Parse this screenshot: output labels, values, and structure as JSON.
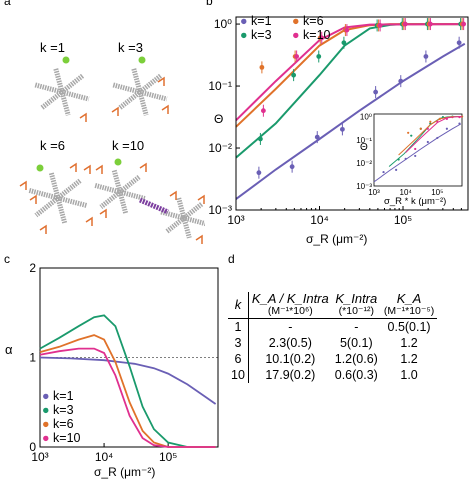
{
  "panels": {
    "a": "a",
    "b": "b",
    "c": "c",
    "d": "d"
  },
  "molecule_labels": [
    "k =1",
    "k =3",
    "k =6",
    "k =10"
  ],
  "colors": {
    "k1": "#6a5fb5",
    "k3": "#1a9a6c",
    "k6": "#e0722a",
    "k10": "#e0308f",
    "strand": "#a8a8a8",
    "tip": "#e07030",
    "ligand": "#7ccf3a"
  },
  "chart_data": [
    {
      "panel": "b",
      "type": "line",
      "title": "",
      "xlabel": "σ_R (μm⁻²)",
      "ylabel": "Θ",
      "x_scale": "log",
      "y_scale": "log",
      "xlim": [
        1000,
        600000
      ],
      "ylim": [
        0.001,
        1.3
      ],
      "x_ticks": [
        "10³",
        "10⁴",
        "10⁵"
      ],
      "y_ticks": [
        "10⁰",
        "10⁻¹",
        "10⁻²",
        "10⁻³"
      ],
      "legend": [
        "k=1",
        "k=3",
        "k=6",
        "k=10"
      ],
      "legend_position": "top-left",
      "series": [
        {
          "name": "k=1",
          "color": "#6a5fb5",
          "line": {
            "x": [
              1000,
              3000,
              10000,
              30000,
              100000,
              300000,
              550000
            ],
            "y": [
              0.0015,
              0.0045,
              0.014,
              0.04,
              0.12,
              0.3,
              0.48
            ]
          },
          "points": {
            "x": [
              2000,
              5000,
              10000,
              20000,
              50000,
              100000,
              200000,
              500000
            ],
            "y": [
              0.004,
              0.005,
              0.015,
              0.02,
              0.08,
              0.12,
              0.3,
              0.5
            ]
          }
        },
        {
          "name": "k=3",
          "color": "#1a9a6c",
          "line": {
            "x": [
              1000,
              3000,
              10000,
              20000,
              40000,
              70000,
              100000,
              550000
            ],
            "y": [
              0.007,
              0.025,
              0.15,
              0.45,
              0.85,
              0.97,
              1.0,
              1.0
            ]
          },
          "points": {
            "x": [
              2000,
              5000,
              10000,
              20000,
              50000,
              100000,
              200000,
              500000
            ],
            "y": [
              0.014,
              0.15,
              0.3,
              0.5,
              0.95,
              1.0,
              1.0,
              1.0
            ]
          }
        },
        {
          "name": "k=6",
          "color": "#e0722a",
          "line": {
            "x": [
              1000,
              3000,
              10000,
              20000,
              40000,
              70000,
              550000
            ],
            "y": [
              0.022,
              0.09,
              0.45,
              0.8,
              0.96,
              1.0,
              1.0
            ]
          },
          "points": {
            "x": [
              2000,
              5000,
              10000,
              20000,
              50000,
              100000,
              200000,
              500000
            ],
            "y": [
              0.2,
              0.3,
              0.6,
              0.8,
              0.95,
              1.0,
              1.0,
              1.0
            ]
          }
        },
        {
          "name": "k=10",
          "color": "#e0308f",
          "line": {
            "x": [
              1000,
              3000,
              10000,
              20000,
              40000,
              550000
            ],
            "y": [
              0.028,
              0.12,
              0.55,
              0.88,
              0.98,
              1.0
            ]
          },
          "points": {
            "x": [
              2000,
              5000,
              10000,
              20000,
              50000,
              100000,
              200000,
              500000
            ],
            "y": [
              0.04,
              0.3,
              0.6,
              0.8,
              0.95,
              1.0,
              1.0,
              1.0
            ]
          }
        }
      ]
    },
    {
      "panel": "b-inset",
      "type": "line",
      "xlabel": "σ_R * k (μm⁻²)",
      "ylabel": "Θ",
      "x_scale": "log",
      "y_scale": "log",
      "xlim": [
        1000,
        600000
      ],
      "ylim": [
        0.001,
        1.3
      ],
      "x_ticks": [
        "10³",
        "10⁴",
        "10⁵"
      ],
      "y_ticks": [
        "10⁰",
        "10⁻¹",
        "10⁻²",
        "10⁻³"
      ]
    },
    {
      "panel": "c",
      "type": "line",
      "xlabel": "σ_R (μm⁻²)",
      "ylabel": "α",
      "x_scale": "log",
      "xlim": [
        1000,
        600000
      ],
      "ylim": [
        0,
        2
      ],
      "x_ticks": [
        "10³",
        "10⁴",
        "10⁵"
      ],
      "y_ticks": [
        "0",
        "1",
        "2"
      ],
      "legend": [
        "k=1",
        "k=3",
        "k=6",
        "k=10"
      ],
      "legend_position": "bottom-left",
      "series": [
        {
          "name": "k=1",
          "color": "#6a5fb5",
          "x": [
            1000,
            3000,
            10000,
            30000,
            60000,
            100000,
            200000,
            400000,
            550000
          ],
          "y": [
            1.0,
            0.99,
            0.97,
            0.93,
            0.88,
            0.82,
            0.7,
            0.55,
            0.48
          ]
        },
        {
          "name": "k=3",
          "color": "#1a9a6c",
          "x": [
            1000,
            2000,
            4000,
            7000,
            10000,
            15000,
            25000,
            40000,
            60000,
            100000,
            200000,
            550000
          ],
          "y": [
            1.1,
            1.22,
            1.35,
            1.45,
            1.47,
            1.35,
            0.9,
            0.45,
            0.2,
            0.05,
            0.0,
            0.0
          ]
        },
        {
          "name": "k=6",
          "color": "#e0722a",
          "x": [
            1000,
            2000,
            4000,
            7000,
            10000,
            15000,
            25000,
            40000,
            60000,
            100000,
            550000
          ],
          "y": [
            1.06,
            1.12,
            1.2,
            1.25,
            1.2,
            0.95,
            0.5,
            0.18,
            0.05,
            0.0,
            0.0
          ]
        },
        {
          "name": "k=10",
          "color": "#e0308f",
          "x": [
            1000,
            2000,
            4000,
            7000,
            10000,
            15000,
            25000,
            40000,
            60000,
            100000,
            550000
          ],
          "y": [
            1.03,
            1.07,
            1.1,
            1.1,
            1.05,
            0.8,
            0.35,
            0.1,
            0.02,
            0.0,
            0.0
          ]
        }
      ]
    },
    {
      "panel": "d",
      "type": "table",
      "columns": [
        {
          "main": "k",
          "unit": ""
        },
        {
          "main": "K_A / K_Intra",
          "unit": "(M⁻¹*10⁶)"
        },
        {
          "main": "K_Intra",
          "unit": "(*10⁻¹²)"
        },
        {
          "main": "K_A",
          "unit": "(M⁻¹*10⁻⁵)"
        }
      ],
      "rows": [
        [
          "1",
          "-",
          "-",
          "0.5(0.1)"
        ],
        [
          "3",
          "2.3(0.5)",
          "5(0.1)",
          "1.2"
        ],
        [
          "6",
          "10.1(0.2)",
          "1.2(0.6)",
          "1.2"
        ],
        [
          "10",
          "17.9(0.2)",
          "0.6(0.3)",
          "1.0"
        ]
      ]
    }
  ]
}
